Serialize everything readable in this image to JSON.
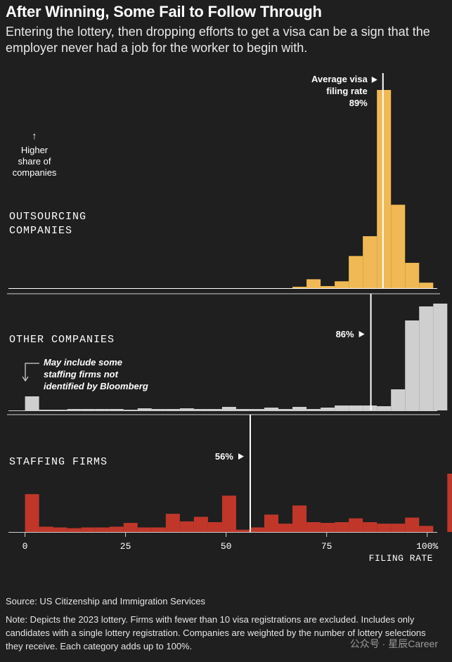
{
  "header": {
    "title": "After Winning, Some Fail to Follow Through",
    "subtitle": "Entering the lottery, then dropping efforts to get a visa can be a sign that the employer never had a job for the worker to begin with."
  },
  "footer": {
    "source": "Source: US Citizenship and Immigration Services",
    "note": "Note: Depicts the 2023 lottery. Firms with fewer than 10 visa registrations are excluded. Includes only candidates with a single lottery registration. Companies are weighted by the number of lottery selections they receive. Each category adds up to 100%."
  },
  "watermark": "公众号 · 星辰Career",
  "chart_data": {
    "type": "bar",
    "xlabel": "FILING RATE",
    "x_ticks": [
      "0",
      "25",
      "50",
      "75",
      "100%"
    ],
    "x_tick_values": [
      0,
      25,
      50,
      75,
      100
    ],
    "x_range": [
      -1.5,
      102.5
    ],
    "bin_width": 3.5,
    "y_annotation": "Higher share of companies",
    "y_arrow": "↑",
    "panels": [
      {
        "name": "OUTSOURCING COMPANIES",
        "color": "#f0b955",
        "ymax": 2.9,
        "mean_value": 89,
        "mean_label": "89%",
        "mean_caption_1": "Average visa",
        "mean_caption_2": "filing rate",
        "values": [
          0,
          0,
          0,
          0,
          0,
          0,
          0,
          0,
          0,
          0,
          0,
          0,
          0,
          0,
          0,
          0,
          0,
          0,
          0,
          0.02,
          0.13,
          0.03,
          0.1,
          0.47,
          0.76,
          2.9,
          1.22,
          0.37,
          0.08
        ]
      },
      {
        "name": "OTHER COMPANIES",
        "color": "#cfcfcf",
        "ymax": 1.52,
        "mean_value": 86,
        "mean_label": "86%",
        "annotation_lines": [
          "May include some",
          "staffing firms not",
          "identified by Bloomberg"
        ],
        "values": [
          0.2,
          0.01,
          0.01,
          0.02,
          0.02,
          0.02,
          0.02,
          0.01,
          0.03,
          0.02,
          0.02,
          0.03,
          0.02,
          0.02,
          0.05,
          0.02,
          0.02,
          0.04,
          0.02,
          0.05,
          0.02,
          0.04,
          0.07,
          0.07,
          0.07,
          0.06,
          0.3,
          1.28,
          1.48,
          1.52
        ]
      },
      {
        "name": "STAFFING FIRMS",
        "color": "#c0372a",
        "ymax": 0.77,
        "mean_value": 56,
        "mean_label": "56%",
        "values": [
          0.5,
          0.07,
          0.06,
          0.05,
          0.06,
          0.06,
          0.07,
          0.12,
          0.06,
          0.06,
          0.24,
          0.14,
          0.2,
          0.13,
          0.48,
          0.03,
          0.06,
          0.23,
          0.11,
          0.35,
          0.13,
          0.12,
          0.13,
          0.18,
          0.13,
          0.11,
          0.11,
          0.19,
          0.08,
          0,
          0.77
        ]
      }
    ]
  }
}
